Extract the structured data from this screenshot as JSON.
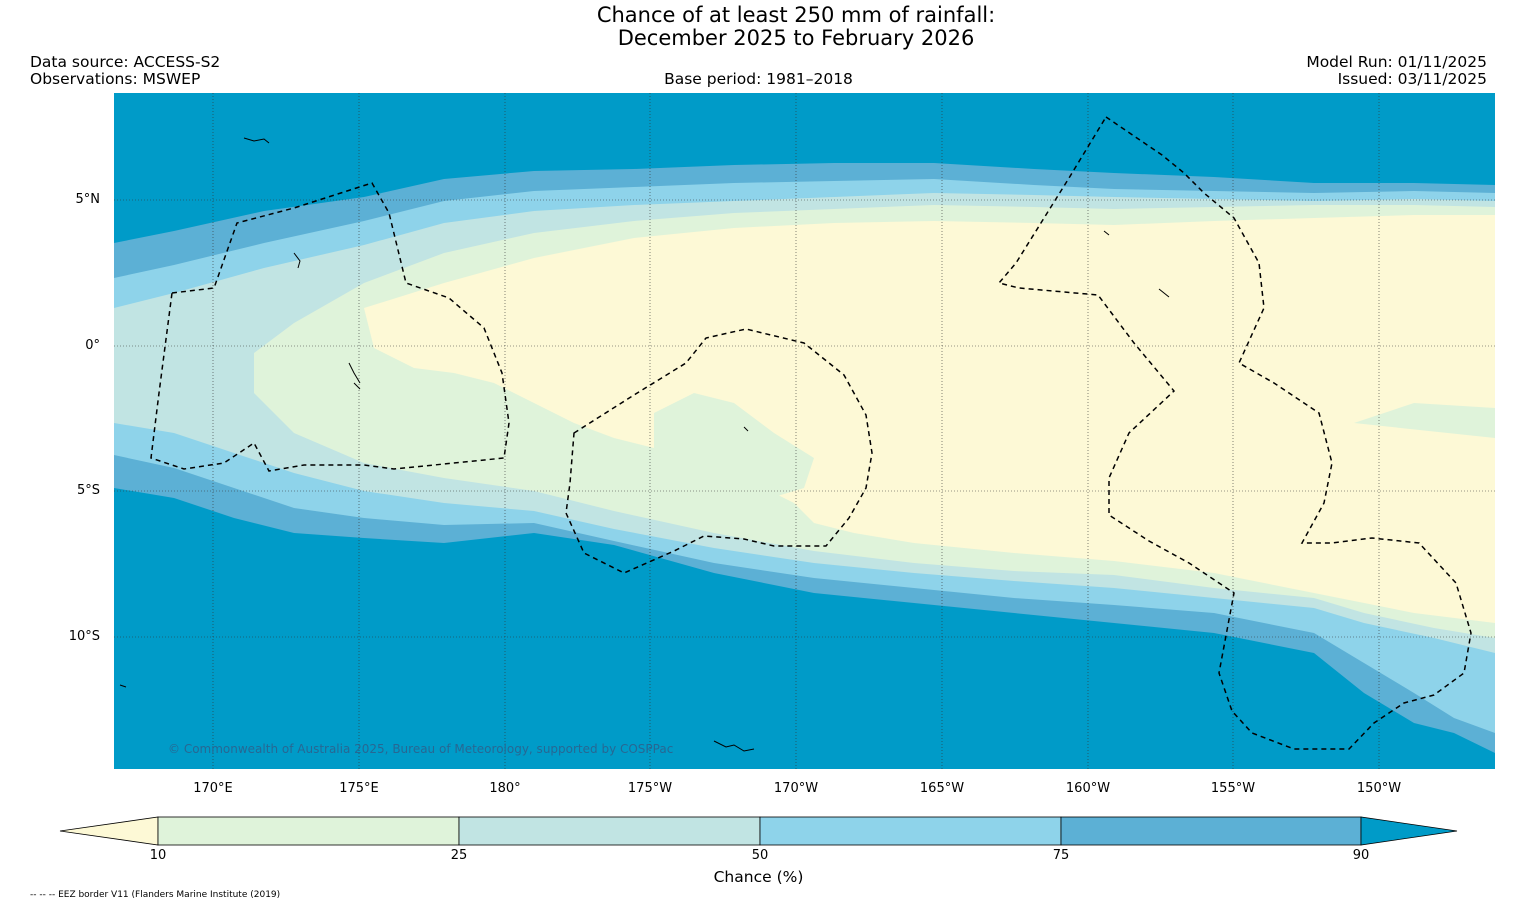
{
  "title": {
    "line1": "Chance of at least 250 mm of rainfall:",
    "line2": "December 2025 to February 2026"
  },
  "header_left": {
    "data_source": "Data source: ACCESS-S2",
    "observations": "Observations: MSWEP"
  },
  "header_center": {
    "base_period": "Base period: 1981–2018"
  },
  "header_right": {
    "model_run": "Model Run: 01/11/2025",
    "issued": "Issued: 03/11/2025"
  },
  "map": {
    "lat_labels": [
      "5°N",
      "0°",
      "5°S",
      "10°S"
    ],
    "lon_labels": [
      "170°E",
      "175°E",
      "180°",
      "175°W",
      "170°W",
      "165°W",
      "160°W",
      "155°W",
      "150°W"
    ],
    "copyright": "© Commonwealth of Australia 2025, Bureau of Meteorology, supported by COSPPac"
  },
  "colorbar": {
    "ticks": [
      "10",
      "25",
      "50",
      "75",
      "90"
    ],
    "label": "Chance (%)",
    "colors": {
      "lt10": "#fdf9d6",
      "c10_25": "#dff3da",
      "c25_50": "#c1e4e3",
      "c50_75": "#8ed3ea",
      "c75_90": "#5cb0d5",
      "gt90": "#009bc8"
    }
  },
  "footer": {
    "eez_note": "-- -- -- EEZ border V11 (Flanders Marine Institute (2019)"
  }
}
